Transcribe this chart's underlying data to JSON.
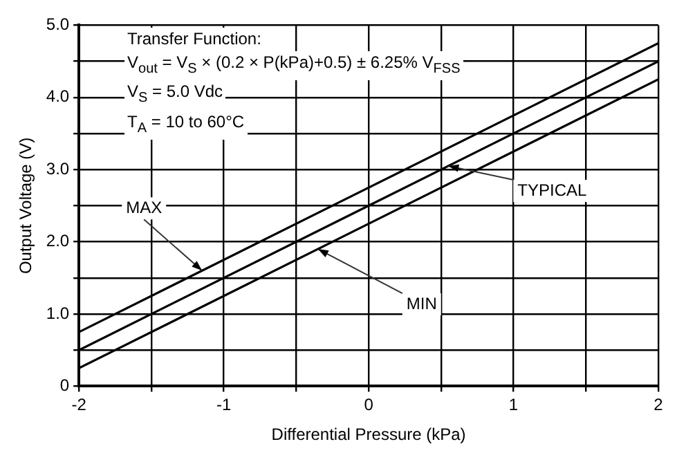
{
  "chart_data": {
    "type": "line",
    "xlabel": "Differential Pressure (kPa)",
    "ylabel": "Output Voltage (V)",
    "x": [
      -2,
      2
    ],
    "series": [
      {
        "color": "#000000",
        "values": [
          0.75,
          4.75
        ]
      },
      {
        "color": "#000000",
        "values": [
          0.5,
          4.5
        ]
      },
      {
        "color": "#000000",
        "values": [
          0.25,
          4.25
        ]
      }
    ],
    "xlim": [
      -2,
      2
    ],
    "ylim": [
      0,
      5
    ],
    "xticks": [
      -2,
      {
        "value": -1.5,
        "label": null
      },
      -1,
      {
        "value": -0.5,
        "label": null
      },
      0,
      {
        "value": 0.5,
        "label": null
      },
      1,
      {
        "value": 1.5,
        "label": null
      },
      2
    ],
    "yticks": [
      {
        "value": 0,
        "label": "0"
      },
      {
        "value": 0.5,
        "label": null
      },
      {
        "value": 1,
        "label": "1.0"
      },
      {
        "value": 1.5,
        "label": null
      },
      {
        "value": 2,
        "label": "2.0"
      },
      {
        "value": 2.5,
        "label": null
      },
      {
        "value": 3,
        "label": "3.0"
      },
      {
        "value": 3.5,
        "label": null
      },
      {
        "value": 4,
        "label": "4.0"
      },
      {
        "value": 4.5,
        "label": null
      },
      {
        "value": 5,
        "label": "5.0"
      }
    ],
    "grid": true,
    "legend": false,
    "marker": "none",
    "line_style": "solid",
    "annotations": [
      "Transfer Function:",
      "V$_{out}$ = V$_{S}$ × (0.2 × P(kPa)+0.5) ± 6.25% V$_{FSS}$",
      "V$_{S}$ = 5.0 Vdc",
      "T$_{A}$ = 10 to 60°C",
      {
        "text": "MAX",
        "x": -1.15,
        "y": 1.6
      },
      {
        "text": "MIN",
        "x": -0.35,
        "y": 1.9
      },
      {
        "text": "TYPICAL",
        "x": 0.55,
        "y": 3.05
      }
    ]
  }
}
